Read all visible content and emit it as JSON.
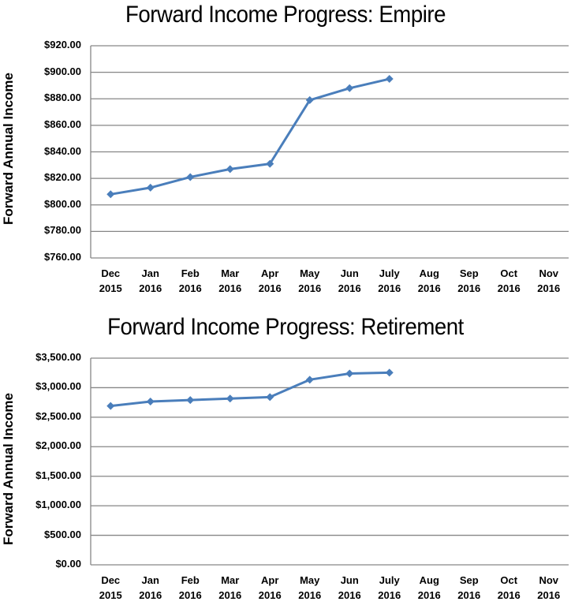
{
  "charts": [
    {
      "title": "Forward Income Progress: Empire",
      "ylabel": "Forward Annual Income",
      "y_ticks": [
        "$920.00",
        "$900.00",
        "$880.00",
        "$860.00",
        "$840.00",
        "$820.00",
        "$800.00",
        "$780.00",
        "$760.00"
      ],
      "x_ticks": [
        {
          "month": "Dec",
          "year": "2015"
        },
        {
          "month": "Jan",
          "year": "2016"
        },
        {
          "month": "Feb",
          "year": "2016"
        },
        {
          "month": "Mar",
          "year": "2016"
        },
        {
          "month": "Apr",
          "year": "2016"
        },
        {
          "month": "May",
          "year": "2016"
        },
        {
          "month": "Jun",
          "year": "2016"
        },
        {
          "month": "July",
          "year": "2016"
        },
        {
          "month": "Aug",
          "year": "2016"
        },
        {
          "month": "Sep",
          "year": "2016"
        },
        {
          "month": "Oct",
          "year": "2016"
        },
        {
          "month": "Nov",
          "year": "2016"
        }
      ]
    },
    {
      "title": "Forward Income Progress: Retirement",
      "ylabel": "Forward Annual Income",
      "y_ticks": [
        "$3,500.00",
        "$3,000.00",
        "$2,500.00",
        "$2,000.00",
        "$1,500.00",
        "$1,000.00",
        "$500.00",
        "$0.00"
      ],
      "x_ticks": [
        {
          "month": "Dec",
          "year": "2015"
        },
        {
          "month": "Jan",
          "year": "2016"
        },
        {
          "month": "Feb",
          "year": "2016"
        },
        {
          "month": "Mar",
          "year": "2016"
        },
        {
          "month": "Apr",
          "year": "2016"
        },
        {
          "month": "May",
          "year": "2016"
        },
        {
          "month": "Jun",
          "year": "2016"
        },
        {
          "month": "July",
          "year": "2016"
        },
        {
          "month": "Aug",
          "year": "2016"
        },
        {
          "month": "Sep",
          "year": "2016"
        },
        {
          "month": "Oct",
          "year": "2016"
        },
        {
          "month": "Nov",
          "year": "2016"
        }
      ]
    }
  ],
  "colors": {
    "line": "#4a7ebb",
    "grid": "#868686",
    "text": "#000000"
  },
  "chart_data": [
    {
      "type": "line",
      "title": "Forward Income Progress: Empire",
      "xlabel": "",
      "ylabel": "Forward Annual Income",
      "categories": [
        "Dec 2015",
        "Jan 2016",
        "Feb 2016",
        "Mar 2016",
        "Apr 2016",
        "May 2016",
        "Jun 2016",
        "July 2016",
        "Aug 2016",
        "Sep 2016",
        "Oct 2016",
        "Nov 2016"
      ],
      "series": [
        {
          "name": "Empire",
          "values": [
            808,
            813,
            821,
            827,
            831,
            879,
            888,
            895,
            null,
            null,
            null,
            null
          ]
        }
      ],
      "ylim": [
        760,
        920
      ],
      "y_step": 20,
      "grid": true,
      "legend": null,
      "marker": "diamond"
    },
    {
      "type": "line",
      "title": "Forward Income Progress: Retirement",
      "xlabel": "",
      "ylabel": "Forward Annual Income",
      "categories": [
        "Dec 2015",
        "Jan 2016",
        "Feb 2016",
        "Mar 2016",
        "Apr 2016",
        "May 2016",
        "Jun 2016",
        "July 2016",
        "Aug 2016",
        "Sep 2016",
        "Oct 2016",
        "Nov 2016"
      ],
      "series": [
        {
          "name": "Retirement",
          "values": [
            2690,
            2765,
            2790,
            2815,
            2840,
            3135,
            3240,
            3255,
            null,
            null,
            null,
            null
          ]
        }
      ],
      "ylim": [
        0,
        3500
      ],
      "y_step": 500,
      "grid": true,
      "legend": null,
      "marker": "diamond"
    }
  ]
}
